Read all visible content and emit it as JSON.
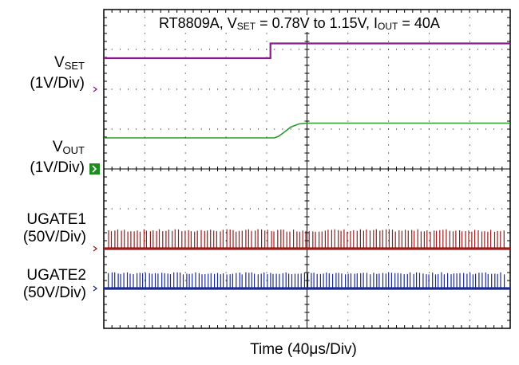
{
  "chart_data": {
    "type": "line",
    "title": "RT8809A, VSET = 0.78V to 1.15V, IOUT = 40A",
    "title_parts": {
      "part1": "RT8809A, V",
      "sub1": "SET",
      "part2": " = 0.78V to 1.15V, I",
      "sub2": "OUT",
      "part3": " = 40A"
    },
    "xlabel": "Time (40μs/Div)",
    "grid": true,
    "divisions": {
      "x": 10,
      "y": 8
    },
    "xlim_div": [
      0,
      10
    ],
    "ylim_div": [
      0,
      8
    ],
    "series": [
      {
        "name": "VSET",
        "label_main": "V",
        "label_sub": "SET",
        "scale": "(1V/Div)",
        "color": "#8b1a8b",
        "marker_color": "#8b1a8b",
        "ground_div": 6.0,
        "x_div": [
          0,
          4.1,
          4.1,
          10
        ],
        "y_v": [
          0.78,
          0.78,
          1.15,
          1.15
        ]
      },
      {
        "name": "VOUT",
        "label_main": "V",
        "label_sub": "OUT",
        "scale": "(1V/Div)",
        "color": "#2a9a2a",
        "marker_color": "#1e8c1e",
        "ground_div": 4.0,
        "x_div": [
          0,
          4.2,
          4.3,
          4.45,
          4.6,
          4.8,
          5.0,
          10
        ],
        "y_v": [
          0.78,
          0.78,
          0.82,
          0.93,
          1.05,
          1.13,
          1.15,
          1.15
        ]
      },
      {
        "name": "UGATE1",
        "label_main": "UGATE1",
        "scale": "(50V/Div)",
        "color": "#9b1a1a",
        "marker_color": "#9b1a1a",
        "ground_div": 2.0,
        "pulse_height_v": 24,
        "pulse_count": 125
      },
      {
        "name": "UGATE2",
        "label_main": "UGATE2",
        "scale": "(50V/Div)",
        "color": "#1a2a8f",
        "marker_color": "#1a2a8f",
        "ground_div": 1.0,
        "pulse_height_v": 20,
        "pulse_count": 128
      }
    ]
  }
}
